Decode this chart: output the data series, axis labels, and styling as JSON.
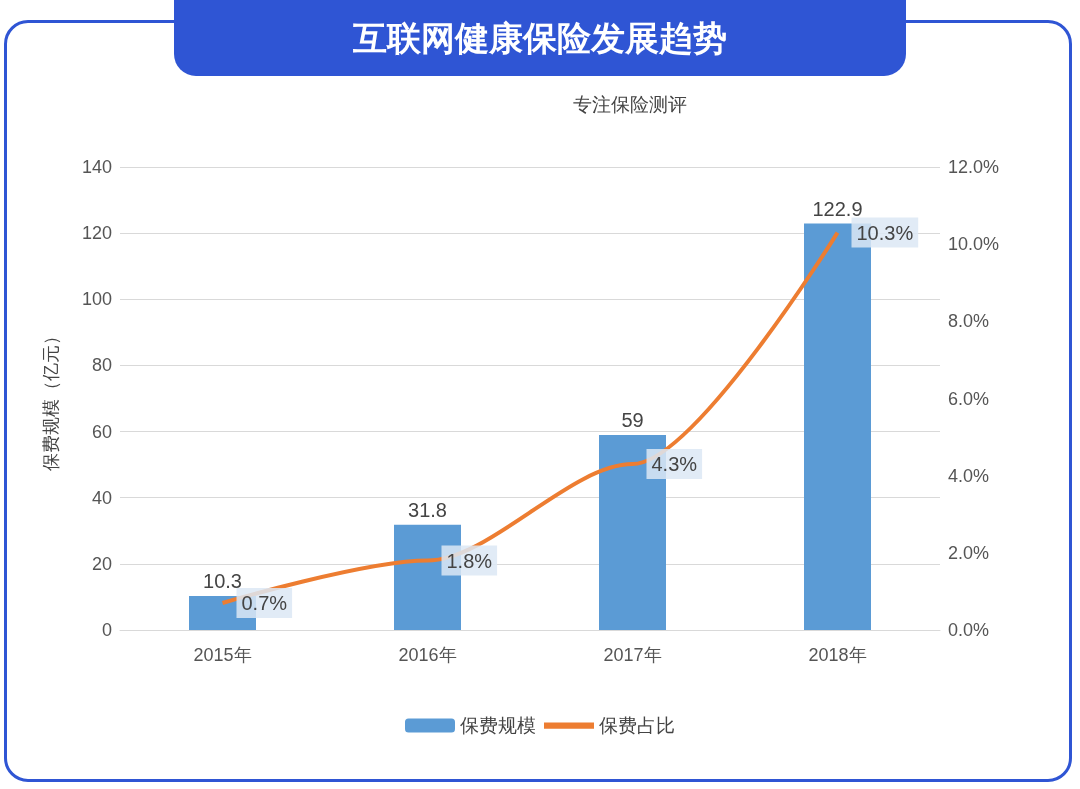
{
  "chart_data": {
    "type": "bar",
    "title": "互联网健康保险发展趋势",
    "subtitle": "专注保险测评",
    "ylabel": "保费规模（亿元）",
    "categories": [
      "2015年",
      "2016年",
      "2017年",
      "2018年"
    ],
    "series": [
      {
        "name": "保费规模",
        "color": "#5b9bd5",
        "values": [
          10.3,
          31.8,
          59,
          122.9
        ],
        "value_labels": [
          "10.3",
          "31.8",
          "59",
          "122.9"
        ]
      },
      {
        "name": "保费占比",
        "type": "line",
        "axis": "y2",
        "color": "#ed7d31",
        "values": [
          0.7,
          1.8,
          4.3,
          10.3
        ],
        "value_labels": [
          "0.7%",
          "1.8%",
          "4.3%",
          "10.3%"
        ]
      }
    ],
    "ylim": [
      0,
      140
    ],
    "yticks": [
      0,
      20,
      40,
      60,
      80,
      100,
      120,
      140
    ],
    "y2lim": [
      0,
      12
    ],
    "y2ticks": [
      {
        "value": 0,
        "label": "0.0%"
      },
      {
        "value": 2,
        "label": "2.0%"
      },
      {
        "value": 4,
        "label": "4.0%"
      },
      {
        "value": 6,
        "label": "6.0%"
      },
      {
        "value": 8,
        "label": "8.0%"
      },
      {
        "value": 10,
        "label": "10.0%"
      },
      {
        "value": 12,
        "label": "12.0%"
      }
    ],
    "grid": "y",
    "legend": "bottom",
    "marker": "none",
    "line_style": "solid"
  }
}
